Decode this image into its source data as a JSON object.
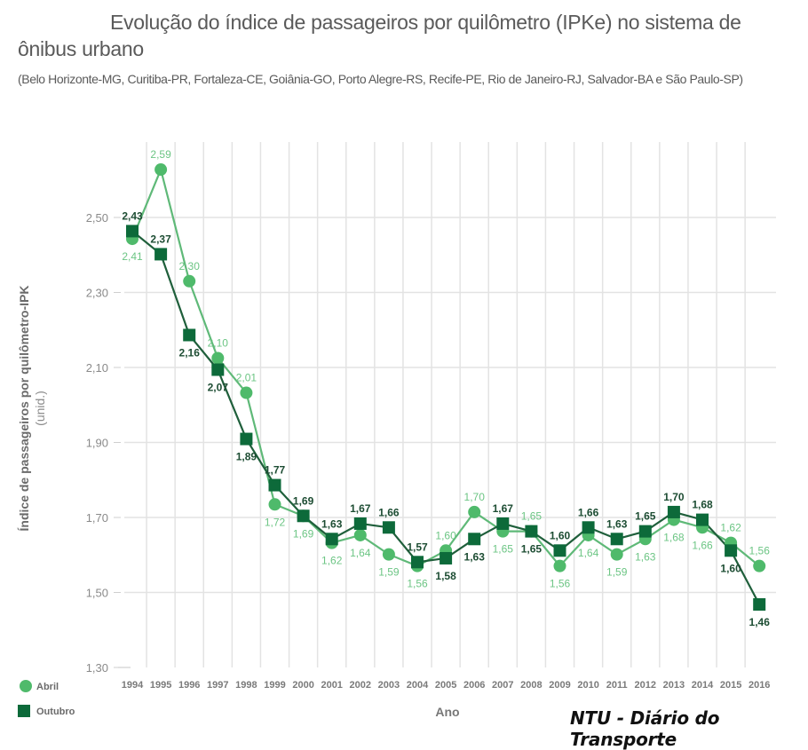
{
  "chart_data": {
    "type": "line",
    "title": "Evolução do índice de passageiros por quilômetro (IPKe) no sistema de ônibus urbano",
    "subtitle": "(Belo Horizonte-MG, Curitiba-PR, Fortaleza-CE, Goiânia-GO, Porto Alegre-RS, Recife-PE, Rio de Janeiro-RJ, Salvador-BA e São Paulo-SP)",
    "xlabel": "Ano",
    "ylabel": "Índice de passageiros por quilômetro-IPK",
    "ylabel_unit": "(unid.)",
    "ylim": [
      1.3,
      2.5
    ],
    "y_ticks": [
      "1,30",
      "1,50",
      "1,70",
      "1,90",
      "2,10",
      "2,30",
      "2,50"
    ],
    "y_tick_values": [
      1.3,
      1.5,
      1.7,
      1.9,
      2.1,
      2.3,
      2.5
    ],
    "grid": true,
    "legend_position": "bottom-left",
    "categories": [
      "1994",
      "1995",
      "1996",
      "1997",
      "1998",
      "1999",
      "2000",
      "2001",
      "2002",
      "2003",
      "2004",
      "2005",
      "2006",
      "2007",
      "2008",
      "2009",
      "2010",
      "2011",
      "2012",
      "2013",
      "2014",
      "2015",
      "2016"
    ],
    "series": [
      {
        "name": "Abril",
        "marker": "circle",
        "color": "#4fba6b",
        "values": [
          2.41,
          2.59,
          2.3,
          2.1,
          2.01,
          1.72,
          1.69,
          1.62,
          1.64,
          1.59,
          1.56,
          1.6,
          1.7,
          1.65,
          1.65,
          1.56,
          1.64,
          1.59,
          1.63,
          1.68,
          1.66,
          1.62,
          1.56
        ],
        "labels": [
          "2,41",
          "2,59",
          "2,30",
          "2,10",
          "2,01",
          "1,72",
          "1,69",
          "1,62",
          "1,64",
          "1,59",
          "1,56",
          "1,60",
          "1,70",
          "1,65",
          "1,65",
          "1,56",
          "1,64",
          "1,59",
          "1,63",
          "1,68",
          "1,66",
          "1,62",
          "1,56"
        ]
      },
      {
        "name": "Outubro",
        "marker": "square",
        "color": "#0d6a3a",
        "values": [
          2.43,
          2.37,
          2.16,
          2.07,
          1.89,
          1.77,
          1.69,
          1.63,
          1.67,
          1.66,
          1.57,
          1.58,
          1.63,
          1.67,
          1.65,
          1.6,
          1.66,
          1.63,
          1.65,
          1.7,
          1.68,
          1.6,
          1.46
        ],
        "labels": [
          "2,43",
          "2,37",
          "2,16",
          "2,07",
          "1,89",
          "1,77",
          "1,69",
          "1,63",
          "1,67",
          "1,66",
          "1,57",
          "1,58",
          "1,63",
          "1,67",
          "1,65",
          "1,60",
          "1,66",
          "1,63",
          "1,65",
          "1,70",
          "1,68",
          "1,60",
          "1,46"
        ]
      }
    ],
    "credit": "NTU - Diário do Transporte"
  }
}
